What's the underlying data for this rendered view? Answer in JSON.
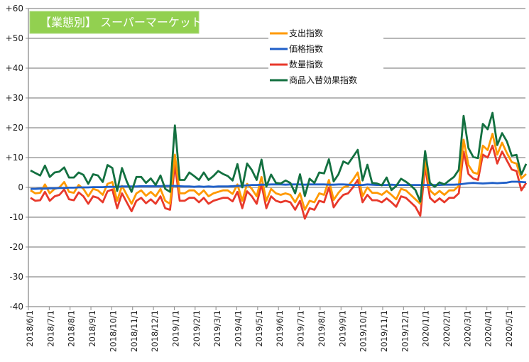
{
  "chart_data": {
    "type": "line",
    "title": "【業態別】 スーパーマーケット",
    "title_box_color": "#92d050",
    "xlabel": "",
    "ylabel": "",
    "ylim": [
      -40,
      60
    ],
    "yticks": [
      60,
      50,
      40,
      30,
      20,
      10,
      0,
      -10,
      -20,
      -30,
      -40
    ],
    "ytick_labels": [
      "+60",
      "+50",
      "+40",
      "+30",
      "+20",
      "+10",
      "0",
      "-10",
      "-20",
      "-30",
      "-40"
    ],
    "grid": true,
    "legend_position": "top-center-right",
    "x_tick_labels": [
      "2018/6/1",
      "2018/7/1",
      "2018/8/1",
      "2018/9/1",
      "2018/10/1",
      "2018/11/1",
      "2018/12/1",
      "2019/1/1",
      "2019/2/1",
      "2019/3/1",
      "2019/4/1",
      "2019/5/1",
      "2019/6/1",
      "2019/7/1",
      "2019/8/1",
      "2019/9/1",
      "2019/10/1",
      "2019/11/1",
      "2019/12/1",
      "2020/1/1",
      "2020/2/1",
      "2020/3/1",
      "2020/4/1",
      "2020/5/1"
    ],
    "x_frequency": "weekly",
    "series": [
      {
        "name": "支出指数",
        "color": "#ff9900",
        "values": [
          -1,
          -2,
          -1.8,
          1,
          -2,
          -0.5,
          0,
          1.8,
          -1.5,
          -1.8,
          0.8,
          -0.5,
          -3,
          -0.5,
          -1,
          -2.5,
          1.2,
          1.8,
          -4.5,
          0.5,
          -2.5,
          -5.5,
          -2,
          -1,
          -2.8,
          -1.5,
          -3,
          -0.5,
          -4.5,
          -5.5,
          11,
          -2,
          -2,
          -1,
          -1,
          -2.5,
          -1,
          -3,
          -2,
          -1.5,
          -1,
          -1,
          -2.2,
          1,
          -4.5,
          1.2,
          -0.5,
          -3,
          3.5,
          -4.5,
          -0.5,
          -2,
          -2.5,
          -2,
          -2.5,
          -5,
          -2,
          -7.5,
          -4.5,
          -5,
          -2,
          -2.5,
          2.5,
          -4.2,
          -1.8,
          0,
          0.5,
          2.5,
          5,
          -3,
          0,
          -1.8,
          -1.8,
          -2.5,
          -1.2,
          -2.5,
          -4,
          -0.5,
          -1,
          -2.5,
          -4,
          -5.5,
          9,
          -1,
          -2.5,
          -1.2,
          -2.5,
          -1,
          -1,
          0.5,
          16,
          7.5,
          5,
          4.5,
          14,
          12.5,
          18,
          11,
          15,
          11.5,
          8.5,
          8,
          3,
          4.5
        ]
      },
      {
        "name": "価格指数",
        "color": "#1f5fc8",
        "values": [
          -0.5,
          -0.5,
          -0.4,
          -0.4,
          -0.3,
          -0.3,
          -0.2,
          -0.2,
          -0.1,
          -0.1,
          0,
          0,
          0,
          0.1,
          0.1,
          0.1,
          0.2,
          0.2,
          0.2,
          0.3,
          0.3,
          0.3,
          0.3,
          0.4,
          0.4,
          0.4,
          0.4,
          0.4,
          0.5,
          0.5,
          0.5,
          0.4,
          0.3,
          0.3,
          0.2,
          0.3,
          0.2,
          0.3,
          0.2,
          0.3,
          0.3,
          0.3,
          0.4,
          0.5,
          0.6,
          0.7,
          0.8,
          0.8,
          0.9,
          0.9,
          1,
          1,
          1,
          0.9,
          1,
          1,
          1,
          0.9,
          1,
          1,
          1,
          1,
          0.9,
          0.9,
          1,
          1,
          0.9,
          0.8,
          0.8,
          0.8,
          1,
          0.9,
          0.8,
          0.8,
          0.8,
          0.9,
          0.8,
          0.8,
          0.8,
          0.8,
          0.8,
          0.8,
          0.8,
          0.8,
          0.8,
          0.8,
          0.9,
          0.9,
          0.9,
          1,
          1.2,
          1.4,
          1.5,
          1.4,
          1.3,
          1.4,
          1.5,
          1.4,
          1.5,
          1.6,
          1.9,
          1.9,
          1.8,
          1.7
        ]
      },
      {
        "name": "数量指数",
        "color": "#e8392b",
        "values": [
          -3.5,
          -4.5,
          -4.3,
          -1.5,
          -4.5,
          -3,
          -2.5,
          -0.7,
          -4,
          -4.3,
          -1.7,
          -3,
          -5.5,
          -3,
          -3.5,
          -5,
          -1.3,
          -0.7,
          -7,
          -2,
          -5,
          -8,
          -4.5,
          -3.5,
          -5.3,
          -4,
          -5.5,
          -3,
          -7,
          -7.5,
          7.5,
          -4.5,
          -4.5,
          -3.5,
          -3.5,
          -5,
          -3.5,
          -5.5,
          -4.5,
          -4,
          -3.5,
          -3.5,
          -4.7,
          -1.5,
          -7,
          -1.3,
          -3,
          -5.5,
          1,
          -7,
          -3,
          -4.5,
          -5,
          -4.5,
          -5,
          -7.5,
          -4.5,
          -10.5,
          -7,
          -7.5,
          -4.5,
          -5,
          0,
          -6.7,
          -4.3,
          -2.5,
          -2,
          0,
          2.5,
          -5,
          -2.5,
          -4.3,
          -4.3,
          -5,
          -3.7,
          -5,
          -6.5,
          -3,
          -3.5,
          -5,
          -6.5,
          -9.5,
          7,
          -3.5,
          -5,
          -3.7,
          -5,
          -3.5,
          -3.5,
          -2,
          12,
          4.5,
          3,
          2.5,
          11,
          10,
          14,
          8,
          12,
          9,
          6,
          5.5,
          -1,
          1.5
        ]
      },
      {
        "name": "商品入替効果指数",
        "color": "#137040",
        "values": [
          5.7,
          4.8,
          4,
          7.3,
          3.5,
          5,
          5.3,
          6.7,
          3.3,
          3.3,
          5,
          4.2,
          1.2,
          4.4,
          4,
          1.8,
          7.5,
          6.5,
          -1.2,
          6.5,
          2,
          -1.5,
          3.5,
          3.5,
          1.5,
          3,
          0.8,
          4,
          -0.5,
          -1.5,
          20.8,
          2.5,
          2.5,
          5,
          3.8,
          2.5,
          5,
          2.5,
          3.8,
          5.5,
          4.5,
          3.8,
          2.3,
          7.8,
          0,
          8,
          5.8,
          2.5,
          9.3,
          0.3,
          4.3,
          1.5,
          1.3,
          2.3,
          1.5,
          -2,
          4.4,
          -2.9,
          2.9,
          1.5,
          5,
          4.7,
          9.4,
          2,
          4.4,
          8.7,
          7.9,
          10.2,
          12.6,
          2.3,
          7.6,
          1.5,
          1.3,
          0.7,
          3.3,
          -0.9,
          0.5,
          2.9,
          1.9,
          0.7,
          -0.9,
          -4.8,
          12.2,
          1.5,
          0.2,
          1.7,
          1,
          2.3,
          3.5,
          5.9,
          24,
          13.2,
          10.2,
          9.8,
          21.3,
          19.5,
          25,
          14.2,
          18.2,
          15.4,
          10.6,
          10.9,
          4.3,
          7.9
        ]
      }
    ]
  }
}
